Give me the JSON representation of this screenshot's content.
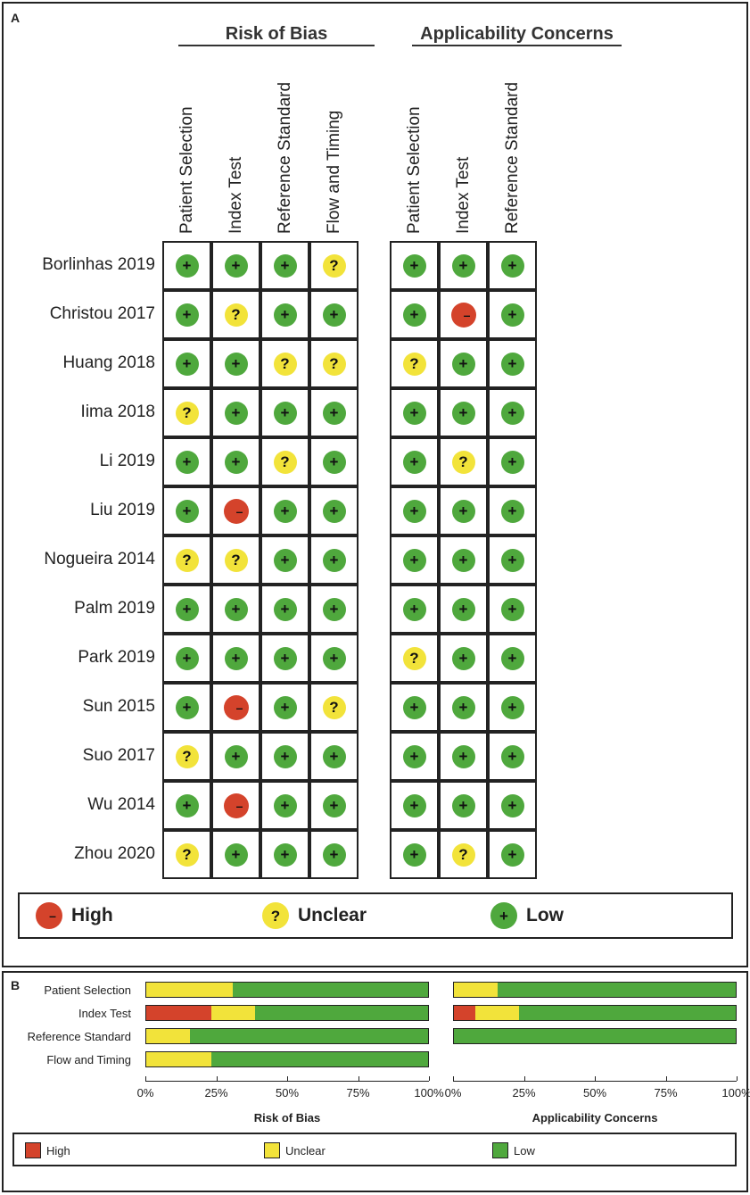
{
  "panel_a": {
    "letter": "A",
    "groups": [
      {
        "title": "Risk of Bias",
        "columns": [
          "Patient Selection",
          "Index Test",
          "Reference Standard",
          "Flow and Timing"
        ]
      },
      {
        "title": "Applicability Concerns",
        "columns": [
          "Patient Selection",
          "Index Test",
          "Reference Standard"
        ]
      }
    ],
    "legend": [
      {
        "key": "high",
        "label": "High"
      },
      {
        "key": "unclear",
        "label": "Unclear"
      },
      {
        "key": "low",
        "label": "Low"
      }
    ]
  },
  "panel_b": {
    "letter": "B",
    "legend": [
      {
        "key": "high",
        "label": "High"
      },
      {
        "key": "unclear",
        "label": "Unclear"
      },
      {
        "key": "low",
        "label": "Low"
      }
    ]
  },
  "colors": {
    "high": "#d4432b",
    "unclear": "#f2e33a",
    "low": "#4fa83d"
  },
  "chart_data": [
    {
      "type": "table",
      "title": "",
      "rows": [
        "Borlinhas 2019",
        "Christou 2017",
        "Huang 2018",
        "Iima 2018",
        "Li 2019",
        "Liu 2019",
        "Nogueira 2014",
        "Palm 2019",
        "Park 2019",
        "Sun 2015",
        "Suo 2017",
        "Wu 2014",
        "Zhou 2020"
      ],
      "columns_risk_of_bias": [
        "Patient Selection",
        "Index Test",
        "Reference Standard",
        "Flow and Timing"
      ],
      "columns_applicability": [
        "Patient Selection",
        "Index Test",
        "Reference Standard"
      ],
      "risk_of_bias": [
        [
          "low",
          "low",
          "low",
          "unclear"
        ],
        [
          "low",
          "unclear",
          "low",
          "low"
        ],
        [
          "low",
          "low",
          "unclear",
          "unclear"
        ],
        [
          "unclear",
          "low",
          "low",
          "low"
        ],
        [
          "low",
          "low",
          "unclear",
          "low"
        ],
        [
          "low",
          "high",
          "low",
          "low"
        ],
        [
          "unclear",
          "unclear",
          "low",
          "low"
        ],
        [
          "low",
          "low",
          "low",
          "low"
        ],
        [
          "low",
          "low",
          "low",
          "low"
        ],
        [
          "low",
          "high",
          "low",
          "unclear"
        ],
        [
          "unclear",
          "low",
          "low",
          "low"
        ],
        [
          "low",
          "high",
          "low",
          "low"
        ],
        [
          "unclear",
          "low",
          "low",
          "low"
        ]
      ],
      "applicability": [
        [
          "low",
          "low",
          "low"
        ],
        [
          "low",
          "high",
          "low"
        ],
        [
          "unclear",
          "low",
          "low"
        ],
        [
          "low",
          "low",
          "low"
        ],
        [
          "low",
          "unclear",
          "low"
        ],
        [
          "low",
          "low",
          "low"
        ],
        [
          "low",
          "low",
          "low"
        ],
        [
          "low",
          "low",
          "low"
        ],
        [
          "unclear",
          "low",
          "low"
        ],
        [
          "low",
          "low",
          "low"
        ],
        [
          "low",
          "low",
          "low"
        ],
        [
          "low",
          "low",
          "low"
        ],
        [
          "low",
          "unclear",
          "low"
        ]
      ]
    },
    {
      "type": "bar",
      "stacked": true,
      "orientation": "horizontal",
      "title": "Risk of Bias",
      "categories": [
        "Patient Selection",
        "Index Test",
        "Reference Standard",
        "Flow and Timing"
      ],
      "series": [
        {
          "name": "High",
          "values": [
            0,
            23.1,
            0,
            0
          ]
        },
        {
          "name": "Unclear",
          "values": [
            30.8,
            15.4,
            15.4,
            23.1
          ]
        },
        {
          "name": "Low",
          "values": [
            69.2,
            61.5,
            84.6,
            76.9
          ]
        }
      ],
      "xlim": [
        0,
        100
      ],
      "xticks": [
        "0%",
        "25%",
        "50%",
        "75%",
        "100%"
      ]
    },
    {
      "type": "bar",
      "stacked": true,
      "orientation": "horizontal",
      "title": "Applicability Concerns",
      "categories": [
        "Patient Selection",
        "Index Test",
        "Reference Standard"
      ],
      "series": [
        {
          "name": "High",
          "values": [
            0,
            7.7,
            0
          ]
        },
        {
          "name": "Unclear",
          "values": [
            15.4,
            15.4,
            0
          ]
        },
        {
          "name": "Low",
          "values": [
            84.6,
            76.9,
            100
          ]
        }
      ],
      "xlim": [
        0,
        100
      ],
      "xticks": [
        "0%",
        "25%",
        "50%",
        "75%",
        "100%"
      ]
    }
  ]
}
